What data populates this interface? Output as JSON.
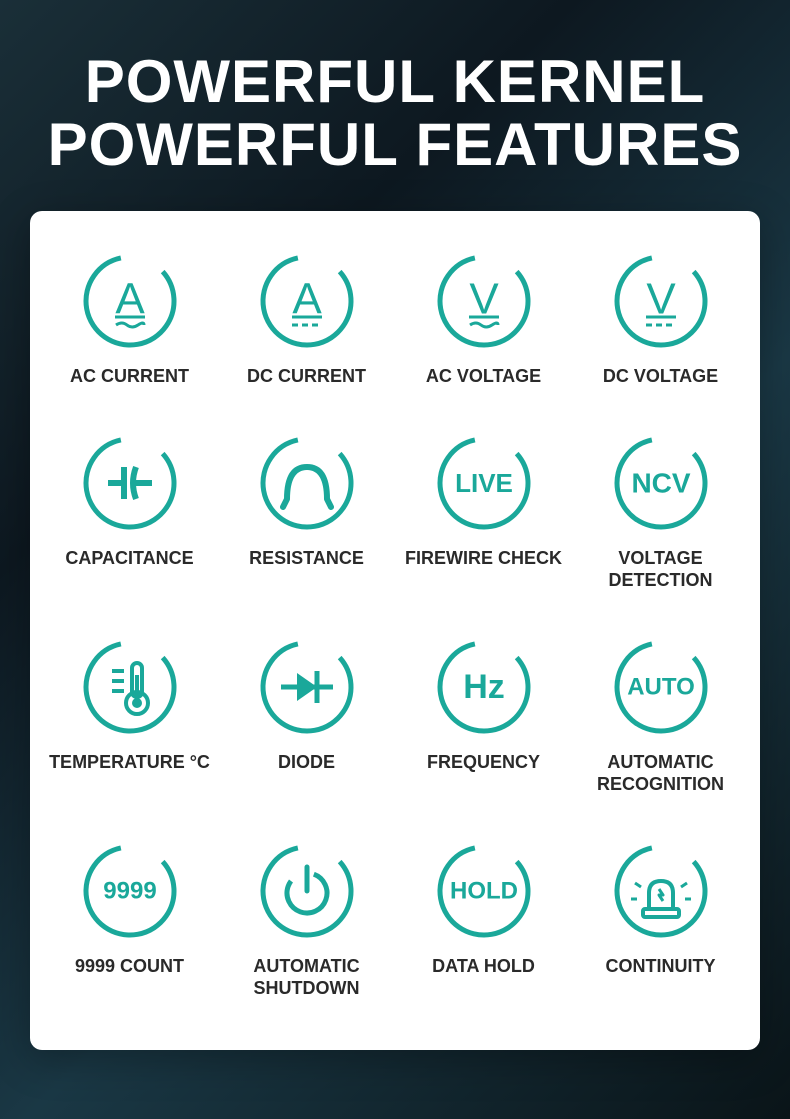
{
  "header": {
    "line1": "POWERFUL KERNEL",
    "line2": "POWERFUL FEATURES"
  },
  "styling": {
    "icon_color": "#1aa89a",
    "label_color": "#2a2a2a",
    "panel_bg": "#ffffff",
    "bg_gradient": [
      "#1a2f38",
      "#0d1820",
      "#1a3845",
      "#0a1418"
    ],
    "header_fontsize": 60,
    "label_fontsize": 18,
    "icon_size": 100,
    "ring_stroke": 5,
    "grid_columns": 4,
    "grid_rows": 4
  },
  "features": [
    {
      "id": "ac-current",
      "label": "AC CURRENT",
      "icon": "ac-current"
    },
    {
      "id": "dc-current",
      "label": "DC CURRENT",
      "icon": "dc-current"
    },
    {
      "id": "ac-voltage",
      "label": "AC VOLTAGE",
      "icon": "ac-voltage"
    },
    {
      "id": "dc-voltage",
      "label": "DC VOLTAGE",
      "icon": "dc-voltage"
    },
    {
      "id": "capacitance",
      "label": "CAPACITANCE",
      "icon": "capacitance"
    },
    {
      "id": "resistance",
      "label": "RESISTANCE",
      "icon": "resistance"
    },
    {
      "id": "firewire",
      "label": "FIREWIRE CHECK",
      "icon": "firewire",
      "text": "LIVE"
    },
    {
      "id": "ncv",
      "label": "VOLTAGE DETECTION",
      "icon": "ncv",
      "text": "NCV"
    },
    {
      "id": "temperature",
      "label": "TEMPERATURE °C",
      "icon": "temperature"
    },
    {
      "id": "diode",
      "label": "DIODE",
      "icon": "diode"
    },
    {
      "id": "frequency",
      "label": "FREQUENCY",
      "icon": "frequency",
      "text": "Hz"
    },
    {
      "id": "auto",
      "label": "AUTOMATIC RECOGNITION",
      "icon": "auto",
      "text": "AUTO"
    },
    {
      "id": "count",
      "label": "9999 COUNT",
      "icon": "count",
      "text": "9999"
    },
    {
      "id": "shutdown",
      "label": "AUTOMATIC SHUTDOWN",
      "icon": "shutdown"
    },
    {
      "id": "hold",
      "label": "DATA HOLD",
      "icon": "hold",
      "text": "HOLD"
    },
    {
      "id": "continuity",
      "label": "CONTINUITY",
      "icon": "continuity"
    }
  ]
}
